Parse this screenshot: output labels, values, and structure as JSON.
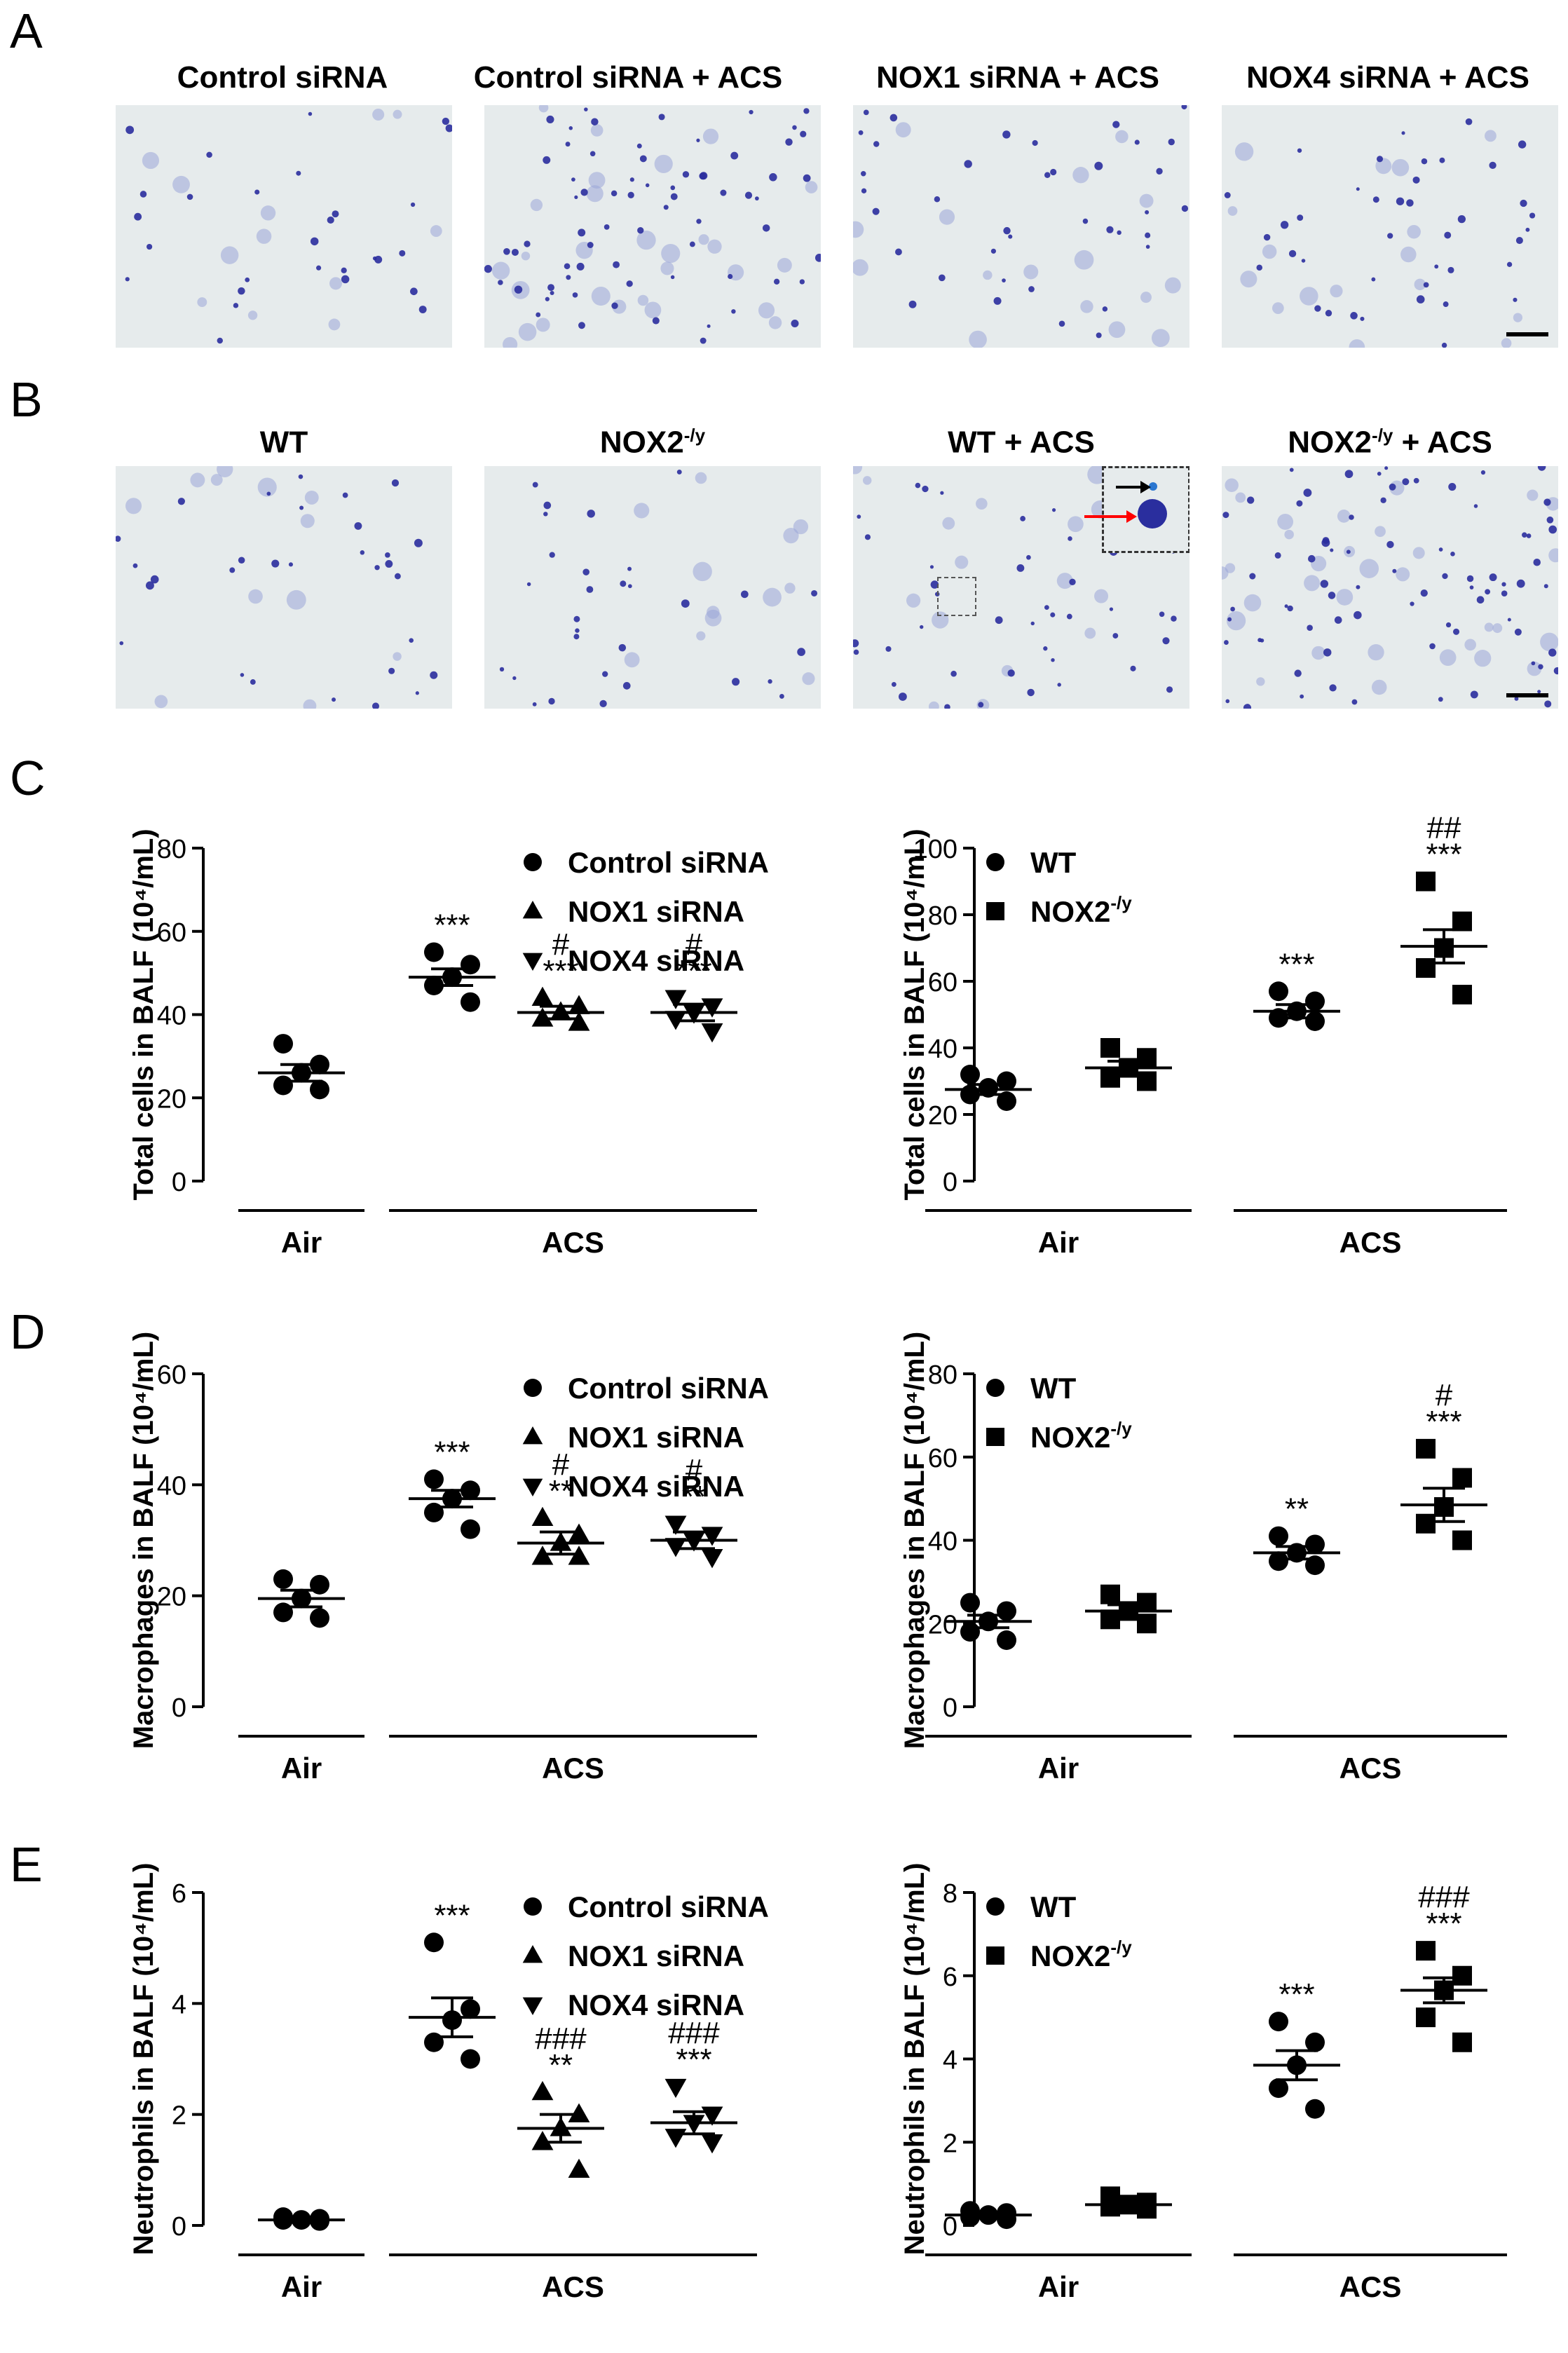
{
  "panels": {
    "A": "A",
    "B": "B",
    "C": "C",
    "D": "D",
    "E": "E"
  },
  "row_a_titles": [
    "Control siRNA",
    "Control siRNA + ACS",
    "NOX1 siRNA + ACS",
    "NOX4 siRNA + ACS"
  ],
  "row_b_titles": [
    {
      "base": "WT",
      "sup": "",
      "tail": ""
    },
    {
      "base": "NOX2",
      "sup": "-/y",
      "tail": ""
    },
    {
      "base": "WT + ACS",
      "sup": "",
      "tail": ""
    },
    {
      "base": "NOX2",
      "sup": "-/y",
      "tail": " + ACS"
    }
  ],
  "colors": {
    "micro_bg": "#e6ebec",
    "nucleus": "#2a2e9e",
    "cell": "#9aa6d8",
    "red_arrow": "#ff0000"
  },
  "chart_data": [
    {
      "id": "C-left",
      "type": "scatter",
      "ylabel": "Total cells in BALF (10⁴/mL)",
      "ylim": [
        0,
        80
      ],
      "yticks": [
        0,
        20,
        40,
        60,
        80
      ],
      "groups": [
        {
          "label": "Air",
          "members": [
            0
          ]
        },
        {
          "label": "ACS",
          "members": [
            1,
            2,
            3
          ]
        }
      ],
      "legend": [
        {
          "marker": "circle",
          "text": "Control siRNA"
        },
        {
          "marker": "triangle-up",
          "text": "NOX1 siRNA"
        },
        {
          "marker": "triangle-down",
          "text": "NOX4 siRNA"
        }
      ],
      "series": [
        {
          "marker": "circle",
          "mean": 26,
          "sem": 2,
          "values": [
            33,
            28,
            26,
            23,
            22
          ],
          "annotations": []
        },
        {
          "marker": "circle",
          "mean": 49,
          "sem": 2,
          "values": [
            55,
            52,
            49,
            47,
            43
          ],
          "annotations": [
            "***"
          ]
        },
        {
          "marker": "triangle-up",
          "mean": 40.5,
          "sem": 1.5,
          "values": [
            44,
            42,
            40.5,
            39,
            38
          ],
          "annotations": [
            "#",
            "***"
          ]
        },
        {
          "marker": "triangle-down",
          "mean": 40.5,
          "sem": 2,
          "values": [
            44,
            42,
            40.5,
            39,
            36
          ],
          "annotations": [
            "#",
            "***"
          ]
        }
      ]
    },
    {
      "id": "C-right",
      "type": "scatter",
      "ylabel": "Total cells in BALF (10⁴/mL)",
      "ylim": [
        0,
        100
      ],
      "yticks": [
        0,
        20,
        40,
        60,
        80,
        100
      ],
      "groups": [
        {
          "label": "Air",
          "members": [
            0,
            1
          ]
        },
        {
          "label": "ACS",
          "members": [
            2,
            3
          ]
        }
      ],
      "legend": [
        {
          "marker": "circle",
          "text": "WT",
          "sup": ""
        },
        {
          "marker": "square",
          "text": "NOX2",
          "sup": "-/y"
        }
      ],
      "series": [
        {
          "marker": "circle",
          "mean": 27.5,
          "sem": 1.5,
          "values": [
            32,
            30,
            28,
            26,
            24
          ],
          "annotations": []
        },
        {
          "marker": "square",
          "mean": 34,
          "sem": 2,
          "values": [
            40,
            37,
            34,
            31,
            30
          ],
          "annotations": []
        },
        {
          "marker": "circle",
          "mean": 51,
          "sem": 2,
          "values": [
            57,
            54,
            51,
            49,
            48
          ],
          "annotations": [
            "***"
          ]
        },
        {
          "marker": "square",
          "mean": 70.5,
          "sem": 5,
          "values": [
            90,
            78,
            70,
            64,
            56
          ],
          "annotations": [
            "##",
            "***"
          ]
        }
      ]
    },
    {
      "id": "D-left",
      "type": "scatter",
      "ylabel": "Macrophages in BALF (10⁴/mL)",
      "ylim": [
        0,
        60
      ],
      "yticks": [
        0,
        20,
        40,
        60
      ],
      "groups": [
        {
          "label": "Air",
          "members": [
            0
          ]
        },
        {
          "label": "ACS",
          "members": [
            1,
            2,
            3
          ]
        }
      ],
      "legend": [
        {
          "marker": "circle",
          "text": "Control siRNA"
        },
        {
          "marker": "triangle-up",
          "text": "NOX1 siRNA"
        },
        {
          "marker": "triangle-down",
          "text": "NOX4 siRNA"
        }
      ],
      "series": [
        {
          "marker": "circle",
          "mean": 19.5,
          "sem": 1.5,
          "values": [
            23,
            22,
            19.5,
            17,
            16
          ],
          "annotations": []
        },
        {
          "marker": "circle",
          "mean": 37.5,
          "sem": 1.5,
          "values": [
            41,
            39,
            37.5,
            35,
            32
          ],
          "annotations": [
            "***"
          ]
        },
        {
          "marker": "triangle-up",
          "mean": 29.5,
          "sem": 2,
          "values": [
            34,
            31,
            29.5,
            27,
            27
          ],
          "annotations": [
            "#",
            "**"
          ]
        },
        {
          "marker": "triangle-down",
          "mean": 30,
          "sem": 1.5,
          "values": [
            33,
            31,
            30,
            29,
            27
          ],
          "annotations": [
            "#",
            "**"
          ]
        }
      ]
    },
    {
      "id": "D-right",
      "type": "scatter",
      "ylabel": "Macrophages in BALF (10⁴/mL)",
      "ylim": [
        0,
        80
      ],
      "yticks": [
        0,
        20,
        40,
        60,
        80
      ],
      "groups": [
        {
          "label": "Air",
          "members": [
            0,
            1
          ]
        },
        {
          "label": "ACS",
          "members": [
            2,
            3
          ]
        }
      ],
      "legend": [
        {
          "marker": "circle",
          "text": "WT",
          "sup": ""
        },
        {
          "marker": "square",
          "text": "NOX2",
          "sup": "-/y"
        }
      ],
      "series": [
        {
          "marker": "circle",
          "mean": 20.5,
          "sem": 1.5,
          "values": [
            25,
            23,
            20.5,
            18,
            16
          ],
          "annotations": []
        },
        {
          "marker": "square",
          "mean": 23,
          "sem": 1.5,
          "values": [
            27,
            25,
            23,
            21,
            20
          ],
          "annotations": []
        },
        {
          "marker": "circle",
          "mean": 37,
          "sem": 1.5,
          "values": [
            41,
            39,
            37,
            35,
            34
          ],
          "annotations": [
            "**"
          ]
        },
        {
          "marker": "square",
          "mean": 48.5,
          "sem": 4,
          "values": [
            62,
            55,
            48,
            44,
            40
          ],
          "annotations": [
            "#",
            "***"
          ]
        }
      ]
    },
    {
      "id": "E-left",
      "type": "scatter",
      "ylabel": "Neutrophils in BALF (10⁴/mL)",
      "ylim": [
        0,
        6
      ],
      "yticks": [
        0,
        2,
        4,
        6
      ],
      "groups": [
        {
          "label": "Air",
          "members": [
            0
          ]
        },
        {
          "label": "ACS",
          "members": [
            1,
            2,
            3
          ]
        }
      ],
      "legend": [
        {
          "marker": "circle",
          "text": "Control siRNA"
        },
        {
          "marker": "triangle-up",
          "text": "NOX1 siRNA"
        },
        {
          "marker": "triangle-down",
          "text": "NOX4 siRNA"
        }
      ],
      "series": [
        {
          "marker": "circle",
          "mean": 0.1,
          "sem": 0.02,
          "values": [
            0.15,
            0.12,
            0.1,
            0.1,
            0.08
          ],
          "annotations": []
        },
        {
          "marker": "circle",
          "mean": 3.75,
          "sem": 0.35,
          "values": [
            5.1,
            3.9,
            3.7,
            3.3,
            3.0
          ],
          "annotations": [
            "***"
          ]
        },
        {
          "marker": "triangle-up",
          "mean": 1.75,
          "sem": 0.25,
          "values": [
            2.4,
            2.0,
            1.75,
            1.5,
            1.0
          ],
          "annotations": [
            "###",
            "**"
          ]
        },
        {
          "marker": "triangle-down",
          "mean": 1.85,
          "sem": 0.2,
          "values": [
            2.5,
            2.0,
            1.85,
            1.6,
            1.5
          ],
          "annotations": [
            "###",
            "***"
          ]
        }
      ]
    },
    {
      "id": "E-right",
      "type": "scatter",
      "ylabel": "Neutrophils in BALF (10⁴/mL)",
      "ylim": [
        0,
        8
      ],
      "yticks": [
        0,
        2,
        4,
        6,
        8
      ],
      "groups": [
        {
          "label": "Air",
          "members": [
            0,
            1
          ]
        },
        {
          "label": "ACS",
          "members": [
            2,
            3
          ]
        }
      ],
      "legend": [
        {
          "marker": "circle",
          "text": "WT",
          "sup": ""
        },
        {
          "marker": "square",
          "text": "NOX2",
          "sup": "-/y"
        }
      ],
      "series": [
        {
          "marker": "circle",
          "mean": 0.25,
          "sem": 0.05,
          "values": [
            0.35,
            0.3,
            0.25,
            0.2,
            0.15
          ],
          "annotations": []
        },
        {
          "marker": "square",
          "mean": 0.5,
          "sem": 0.1,
          "values": [
            0.7,
            0.55,
            0.5,
            0.45,
            0.4
          ],
          "annotations": []
        },
        {
          "marker": "circle",
          "mean": 3.85,
          "sem": 0.35,
          "values": [
            4.9,
            4.4,
            3.85,
            3.3,
            2.8
          ],
          "annotations": [
            "***"
          ]
        },
        {
          "marker": "square",
          "mean": 5.65,
          "sem": 0.3,
          "values": [
            6.6,
            6.0,
            5.65,
            5.0,
            4.4
          ],
          "annotations": [
            "###",
            "***"
          ]
        }
      ]
    }
  ]
}
